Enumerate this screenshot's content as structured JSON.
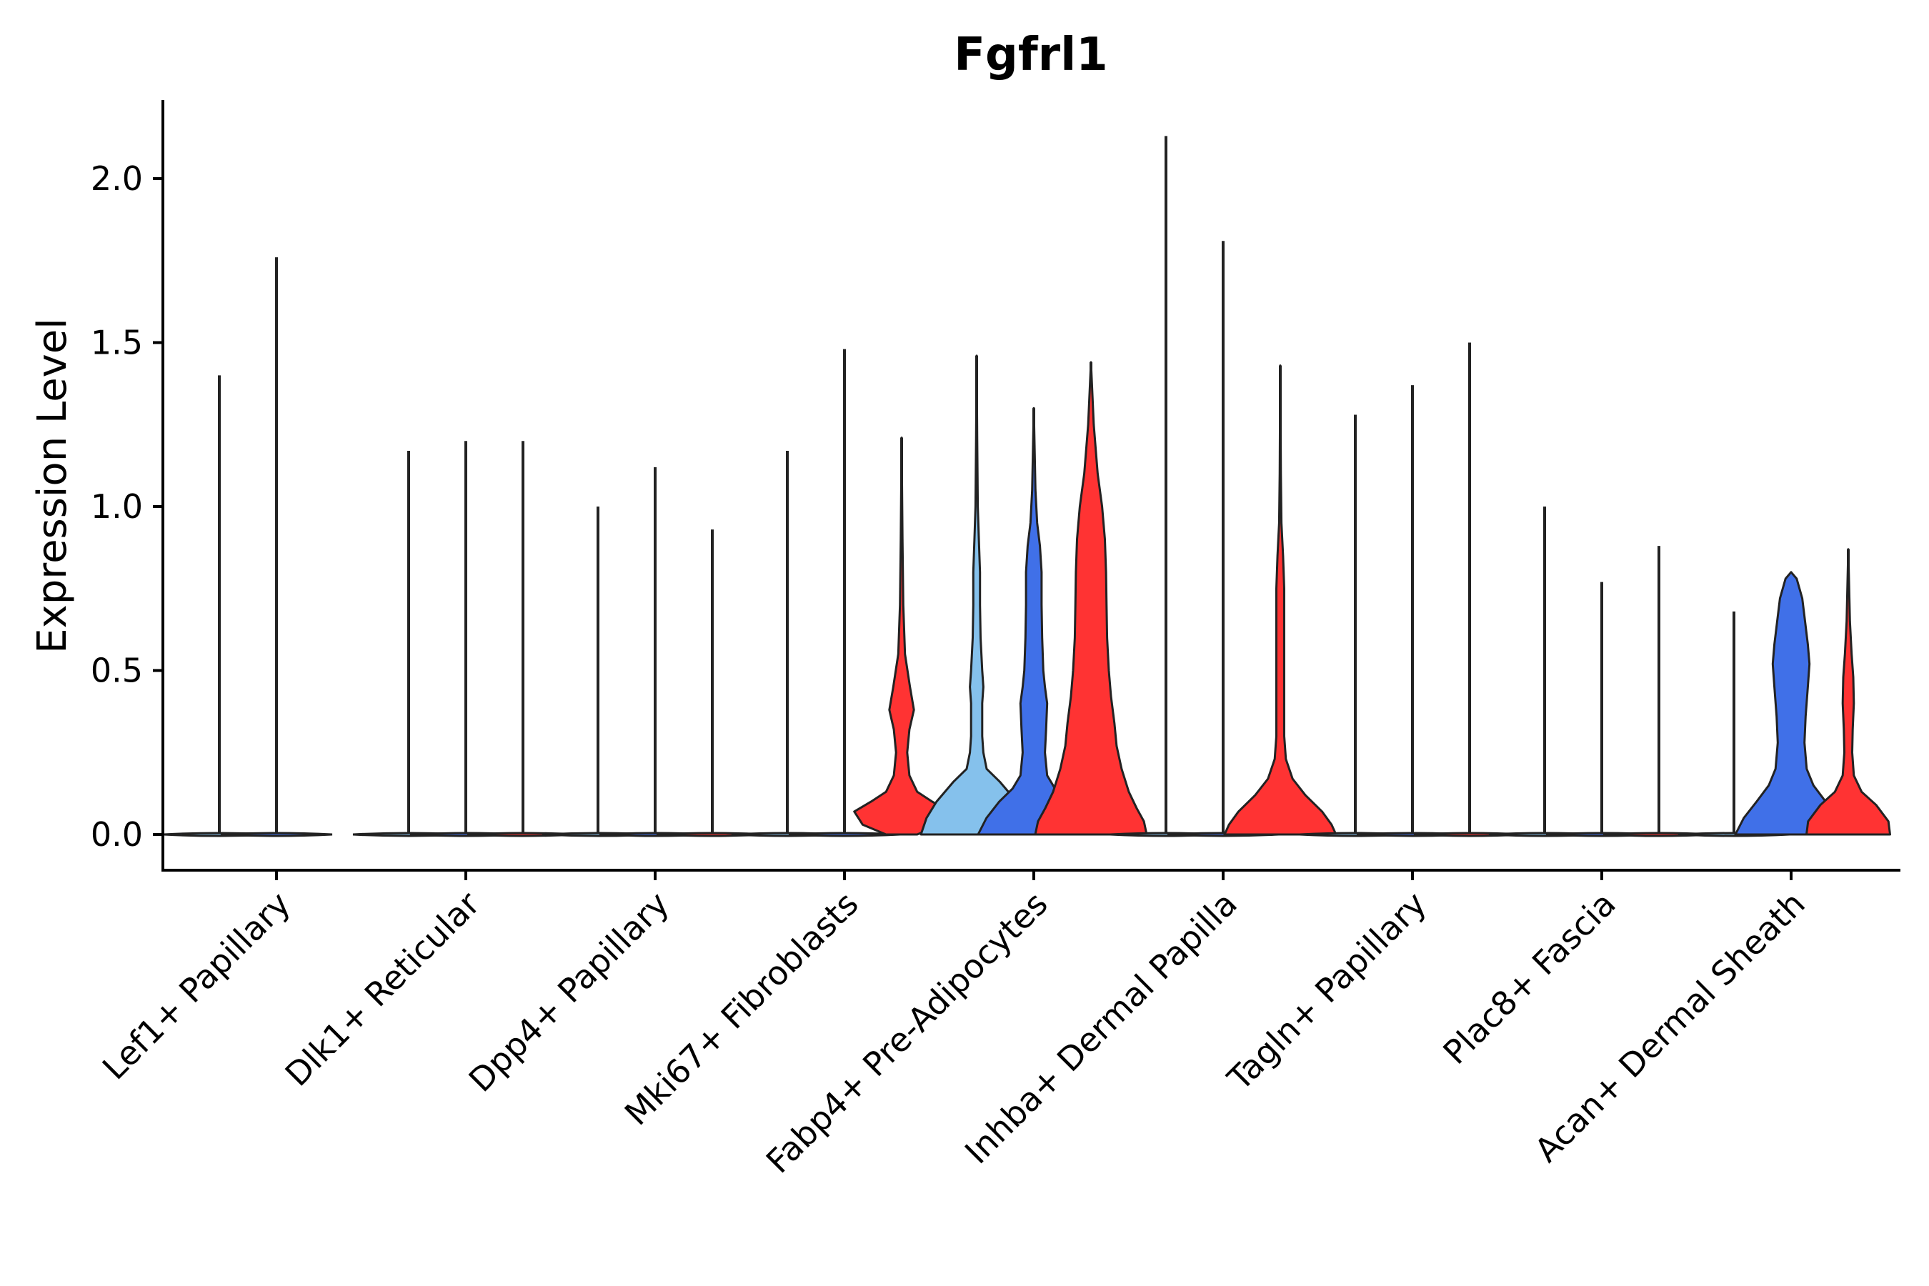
{
  "chart_data": {
    "type": "violin",
    "title": "Fgfrl1",
    "xlabel": "",
    "ylabel": "Expression Level",
    "ylim": [
      -0.11,
      2.24
    ],
    "yticks": [
      0.0,
      0.5,
      1.0,
      1.5,
      2.0
    ],
    "ytick_labels": [
      "0.0",
      "0.5",
      "1.0",
      "1.5",
      "2.0"
    ],
    "categories": [
      "Lef1+ Papillary",
      "Dlk1+ Reticular",
      "Dpp4+ Papillary",
      "Mki67+ Fibroblasts",
      "Fabp4+ Pre-Adipocytes",
      "Inhba+ Dermal Papilla",
      "Tagln+ Papillary",
      "Plac8+ Fascia",
      "Acan+ Dermal Sheath"
    ],
    "series_colors": [
      "#85c1ec",
      "#4070e8",
      "#ff3333"
    ],
    "violins": [
      {
        "category": 0,
        "sub": 0,
        "max": 1.4,
        "color": "#85c1ec",
        "profile": []
      },
      {
        "category": 0,
        "sub": 1,
        "max": 1.76,
        "color": "#4070e8",
        "profile": []
      },
      {
        "category": 1,
        "sub": 0,
        "max": 1.17,
        "color": "#85c1ec",
        "profile": []
      },
      {
        "category": 1,
        "sub": 1,
        "max": 1.2,
        "color": "#4070e8",
        "profile": []
      },
      {
        "category": 1,
        "sub": 2,
        "max": 1.2,
        "color": "#ff3333",
        "profile": []
      },
      {
        "category": 2,
        "sub": 0,
        "max": 1.0,
        "color": "#85c1ec",
        "profile": []
      },
      {
        "category": 2,
        "sub": 1,
        "max": 1.12,
        "color": "#4070e8",
        "profile": []
      },
      {
        "category": 2,
        "sub": 2,
        "max": 0.93,
        "color": "#ff3333",
        "profile": []
      },
      {
        "category": 3,
        "sub": 0,
        "max": 1.17,
        "color": "#85c1ec",
        "profile": []
      },
      {
        "category": 3,
        "sub": 1,
        "max": 1.48,
        "color": "#4070e8",
        "profile": []
      },
      {
        "category": 3,
        "sub": 2,
        "max": 1.21,
        "color": "#ff3333",
        "profile": [
          [
            0,
            0.28
          ],
          [
            0.03,
            0.7
          ],
          [
            0.07,
            0.85
          ],
          [
            0.1,
            0.55
          ],
          [
            0.13,
            0.28
          ],
          [
            0.18,
            0.14
          ],
          [
            0.25,
            0.1
          ],
          [
            0.32,
            0.14
          ],
          [
            0.38,
            0.22
          ],
          [
            0.45,
            0.15
          ],
          [
            0.55,
            0.06
          ],
          [
            0.7,
            0.03
          ],
          [
            0.9,
            0.015
          ],
          [
            1.21,
            0
          ]
        ]
      },
      {
        "category": 4,
        "sub": 0,
        "max": 1.46,
        "color": "#85c1ec",
        "profile": [
          [
            0,
            1.0
          ],
          [
            0.05,
            0.9
          ],
          [
            0.1,
            0.72
          ],
          [
            0.16,
            0.42
          ],
          [
            0.2,
            0.18
          ],
          [
            0.25,
            0.12
          ],
          [
            0.3,
            0.1
          ],
          [
            0.4,
            0.1
          ],
          [
            0.45,
            0.12
          ],
          [
            0.5,
            0.1
          ],
          [
            0.6,
            0.07
          ],
          [
            0.7,
            0.06
          ],
          [
            0.8,
            0.06
          ],
          [
            0.9,
            0.04
          ],
          [
            1.0,
            0.02
          ],
          [
            1.2,
            0.01
          ],
          [
            1.46,
            0
          ]
        ]
      },
      {
        "category": 4,
        "sub": 1,
        "max": 1.3,
        "color": "#4070e8",
        "profile": [
          [
            0,
            1.0
          ],
          [
            0.05,
            0.85
          ],
          [
            0.1,
            0.62
          ],
          [
            0.14,
            0.38
          ],
          [
            0.18,
            0.24
          ],
          [
            0.25,
            0.2
          ],
          [
            0.32,
            0.22
          ],
          [
            0.4,
            0.24
          ],
          [
            0.45,
            0.2
          ],
          [
            0.5,
            0.17
          ],
          [
            0.6,
            0.15
          ],
          [
            0.7,
            0.14
          ],
          [
            0.8,
            0.14
          ],
          [
            0.88,
            0.11
          ],
          [
            0.95,
            0.06
          ],
          [
            1.05,
            0.03
          ],
          [
            1.3,
            0
          ]
        ]
      },
      {
        "category": 4,
        "sub": 2,
        "max": 1.44,
        "color": "#ff3333",
        "profile": [
          [
            0,
            1.0
          ],
          [
            0.04,
            0.95
          ],
          [
            0.08,
            0.82
          ],
          [
            0.13,
            0.68
          ],
          [
            0.2,
            0.55
          ],
          [
            0.27,
            0.46
          ],
          [
            0.34,
            0.42
          ],
          [
            0.42,
            0.36
          ],
          [
            0.5,
            0.32
          ],
          [
            0.6,
            0.29
          ],
          [
            0.7,
            0.28
          ],
          [
            0.8,
            0.27
          ],
          [
            0.9,
            0.25
          ],
          [
            1.0,
            0.2
          ],
          [
            1.1,
            0.12
          ],
          [
            1.25,
            0.05
          ],
          [
            1.44,
            0
          ]
        ]
      },
      {
        "category": 5,
        "sub": 0,
        "max": 2.13,
        "color": "#85c1ec",
        "profile": []
      },
      {
        "category": 5,
        "sub": 1,
        "max": 1.81,
        "color": "#4070e8",
        "profile": []
      },
      {
        "category": 5,
        "sub": 2,
        "max": 1.43,
        "color": "#ff3333",
        "profile": [
          [
            0,
            1.0
          ],
          [
            0.03,
            0.92
          ],
          [
            0.07,
            0.75
          ],
          [
            0.12,
            0.45
          ],
          [
            0.17,
            0.22
          ],
          [
            0.23,
            0.1
          ],
          [
            0.3,
            0.07
          ],
          [
            0.45,
            0.07
          ],
          [
            0.6,
            0.07
          ],
          [
            0.75,
            0.07
          ],
          [
            0.85,
            0.05
          ],
          [
            0.95,
            0.02
          ],
          [
            1.1,
            0.01
          ],
          [
            1.43,
            0
          ]
        ]
      },
      {
        "category": 6,
        "sub": 0,
        "max": 1.28,
        "color": "#85c1ec",
        "profile": []
      },
      {
        "category": 6,
        "sub": 1,
        "max": 1.37,
        "color": "#4070e8",
        "profile": []
      },
      {
        "category": 6,
        "sub": 2,
        "max": 1.5,
        "color": "#ff3333",
        "profile": []
      },
      {
        "category": 7,
        "sub": 0,
        "max": 1.0,
        "color": "#85c1ec",
        "profile": []
      },
      {
        "category": 7,
        "sub": 1,
        "max": 0.77,
        "color": "#4070e8",
        "profile": []
      },
      {
        "category": 7,
        "sub": 2,
        "max": 0.88,
        "color": "#ff3333",
        "profile": []
      },
      {
        "category": 8,
        "sub": 0,
        "max": 0.68,
        "color": "#85c1ec",
        "profile": []
      },
      {
        "category": 8,
        "sub": 1,
        "max": 0.8,
        "color": "#4070e8",
        "profile": [
          [
            0,
            1.0
          ],
          [
            0.05,
            0.85
          ],
          [
            0.1,
            0.62
          ],
          [
            0.15,
            0.4
          ],
          [
            0.2,
            0.28
          ],
          [
            0.28,
            0.24
          ],
          [
            0.36,
            0.26
          ],
          [
            0.45,
            0.3
          ],
          [
            0.52,
            0.33
          ],
          [
            0.58,
            0.3
          ],
          [
            0.65,
            0.25
          ],
          [
            0.72,
            0.2
          ],
          [
            0.78,
            0.1
          ],
          [
            0.8,
            0
          ]
        ]
      },
      {
        "category": 8,
        "sub": 2,
        "max": 0.87,
        "color": "#ff3333",
        "profile": [
          [
            0,
            0.75
          ],
          [
            0.04,
            0.72
          ],
          [
            0.09,
            0.5
          ],
          [
            0.13,
            0.24
          ],
          [
            0.18,
            0.1
          ],
          [
            0.25,
            0.07
          ],
          [
            0.32,
            0.08
          ],
          [
            0.4,
            0.1
          ],
          [
            0.48,
            0.09
          ],
          [
            0.55,
            0.06
          ],
          [
            0.65,
            0.03
          ],
          [
            0.87,
            0
          ]
        ]
      }
    ]
  }
}
